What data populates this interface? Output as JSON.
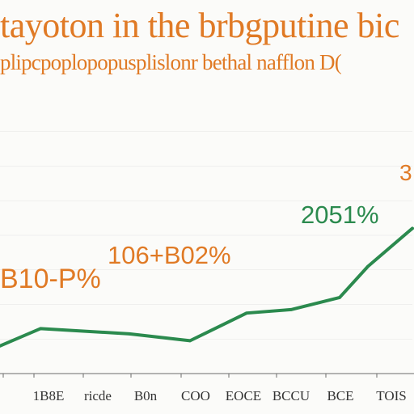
{
  "colors": {
    "title": "#e07a25",
    "line": "#2b8a4e",
    "label_orange": "#e07a25",
    "label_green": "#2b8a4e",
    "axis": "#6b6b6b",
    "grid": "#e4e4e4"
  },
  "header": {
    "title": "tayoton in the brbgputine bic",
    "subtitle": "plipcpoplopopusplislonr bethal nafflon D("
  },
  "chart_data": {
    "type": "line",
    "title": "tayoton in the brbgputine bic",
    "subtitle": "plipcpoplopopusplislonr bethal nafflon D(",
    "xlabel": "",
    "ylabel": "",
    "categories": [
      "",
      "1B8E",
      "ricde",
      "B0n",
      "COO",
      "EOCE",
      "BCCU",
      "BCE",
      "TOIS"
    ],
    "series": [
      {
        "values": [
          8,
          13,
          11.5,
          9.5,
          17.5,
          18.5,
          22,
          31,
          42
        ]
      }
    ],
    "ylim": [
      0,
      80
    ],
    "grid": true,
    "annotations": [
      {
        "text": "B10-P%",
        "x": "",
        "y": 8,
        "color": "orange"
      },
      {
        "text": "106+B02%",
        "x": "B0n",
        "y": 9.5,
        "color": "orange"
      },
      {
        "text": "2051%",
        "x": "BCE",
        "y": 31,
        "color": "green"
      },
      {
        "text": "3",
        "x": "TOIS",
        "y": 42,
        "color": "orange"
      }
    ]
  }
}
